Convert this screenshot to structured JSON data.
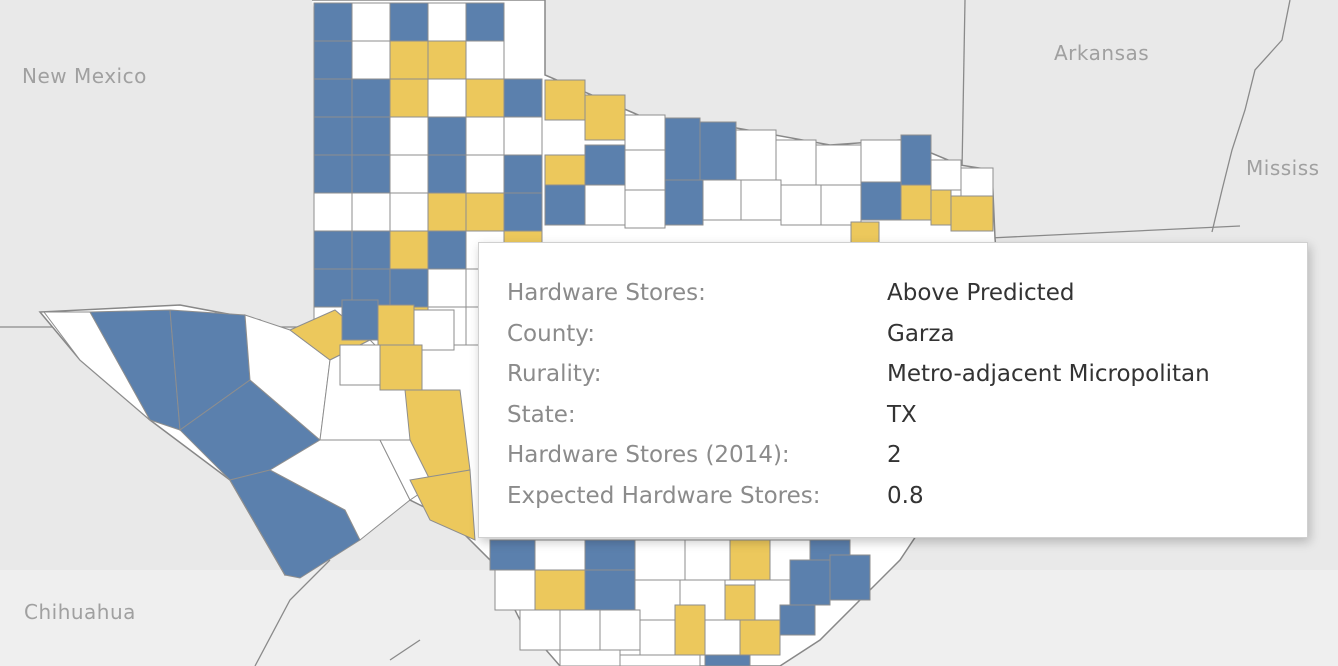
{
  "map": {
    "places": {
      "new_mexico": "New Mexico",
      "arkansas": "Arkansas",
      "mississippi": "Mississ",
      "chihuahua": "Chihuahua"
    },
    "selected_county": "Garza",
    "colors": {
      "above_predicted": "#5b80ad",
      "below_predicted": "#ecc85c",
      "as_predicted": "#ffffff",
      "background": "#e9e9e9",
      "texas_outline": "#888888",
      "selected_outline": "#222222"
    }
  },
  "tooltip": {
    "rows": [
      {
        "label": "Hardware Stores:",
        "value": "Above Predicted"
      },
      {
        "label": "County:",
        "value": "Garza"
      },
      {
        "label": "Rurality:",
        "value": "Metro-adjacent Micropolitan"
      },
      {
        "label": "State:",
        "value": "TX"
      },
      {
        "label": "Hardware Stores (2014):",
        "value": "2"
      },
      {
        "label": "Expected Hardware Stores:",
        "value": "0.8"
      }
    ]
  }
}
